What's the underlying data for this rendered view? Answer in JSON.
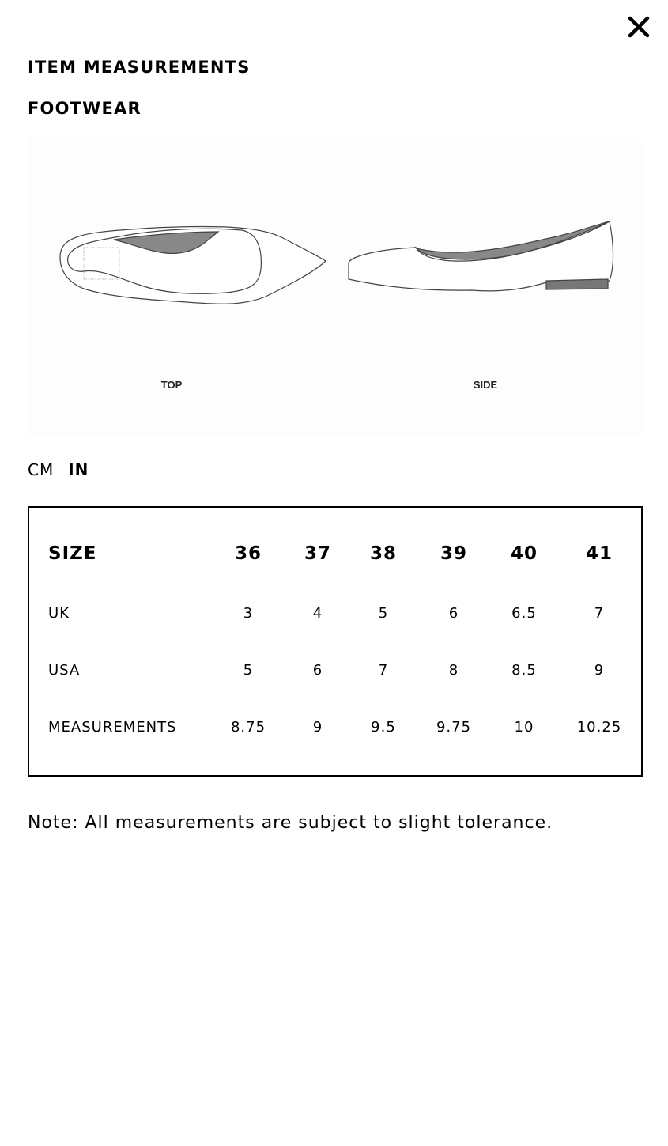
{
  "header": {
    "title": "ITEM MEASUREMENTS",
    "subtitle": "FOOTWEAR",
    "close_icon": "close-icon"
  },
  "illustration": {
    "views": [
      "TOP",
      "SIDE"
    ]
  },
  "units": {
    "options": [
      "CM",
      "IN"
    ],
    "selected": "IN"
  },
  "table": {
    "header": {
      "label": "SIZE",
      "values": [
        "36",
        "37",
        "38",
        "39",
        "40",
        "41"
      ]
    },
    "rows": [
      {
        "label": "UK",
        "values": [
          "3",
          "4",
          "5",
          "6",
          "6.5",
          "7"
        ]
      },
      {
        "label": "USA",
        "values": [
          "5",
          "6",
          "7",
          "8",
          "8.5",
          "9"
        ]
      },
      {
        "label": "MEASUREMENTS",
        "values": [
          "8.75",
          "9",
          "9.5",
          "9.75",
          "10",
          "10.25"
        ]
      }
    ]
  },
  "note": "Note: All measurements are subject to slight tolerance."
}
